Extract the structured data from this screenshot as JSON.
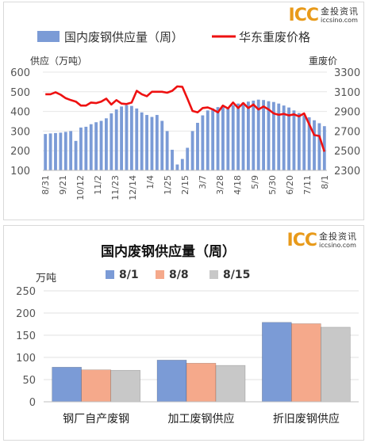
{
  "logo": {
    "mark": "ICC",
    "chinese": "金投资讯",
    "url": "iccsino.com"
  },
  "chart_data": [
    {
      "type": "bar+line",
      "legend": {
        "bar_label": "国内废钢供应量（周）",
        "line_label": "华东重废价格",
        "placement": "top"
      },
      "y_left_label": "供应（万吨）",
      "y_right_label": "重废价",
      "y_left": {
        "min": 100,
        "max": 600,
        "ticks": [
          "600",
          "500",
          "400",
          "300",
          "200",
          "100"
        ]
      },
      "y_right": {
        "min": 2300,
        "max": 3300,
        "ticks": [
          "3300",
          "3100",
          "2900",
          "2700",
          "2500",
          "2300"
        ]
      },
      "x_tick_labels": [
        "8/31",
        "9/21",
        "10/12",
        "11/2",
        "11/23",
        "12/14",
        "1/4",
        "1/25",
        "2/15",
        "3/7",
        "3/28",
        "4/18",
        "5/9",
        "5/30",
        "6/20",
        "7/11",
        "8/1"
      ],
      "supply": [
        285,
        288,
        290,
        292,
        296,
        300,
        250,
        318,
        322,
        335,
        345,
        352,
        365,
        390,
        410,
        425,
        432,
        428,
        415,
        395,
        382,
        372,
        382,
        352,
        300,
        205,
        130,
        158,
        215,
        300,
        342,
        380,
        405,
        415,
        422,
        430,
        420,
        432,
        440,
        445,
        450,
        455,
        460,
        458,
        452,
        448,
        440,
        430,
        420,
        405,
        392,
        380,
        370,
        355,
        340,
        325
      ],
      "price": [
        3075,
        3075,
        3095,
        3070,
        3035,
        3015,
        3000,
        2960,
        2960,
        2990,
        2985,
        3000,
        3030,
        2970,
        3015,
        2980,
        2975,
        2990,
        3110,
        3075,
        3055,
        3100,
        3100,
        3100,
        3090,
        3110,
        3155,
        3150,
        3030,
        2905,
        2890,
        2935,
        2940,
        2920,
        2890,
        2960,
        2930,
        2990,
        2935,
        2985,
        2935,
        2970,
        2920,
        2950,
        2920,
        2880,
        2865,
        2875,
        2860,
        2870,
        2850,
        2880,
        2770,
        2660,
        2650,
        2490
      ],
      "colors": {
        "bar": "#7b9bd6",
        "line": "#ee1111"
      }
    },
    {
      "type": "bar",
      "title": "国内废钢供应量（周）",
      "unit_label": "万吨",
      "categories": [
        "钢厂自产废钢",
        "加工废钢供应",
        "折旧废钢供应"
      ],
      "series": [
        {
          "name": "8/1",
          "values": [
            78,
            94,
            179
          ],
          "color": "#7b9bd6"
        },
        {
          "name": "8/8",
          "values": [
            72,
            87,
            176
          ],
          "color": "#f5a98b"
        },
        {
          "name": "8/15",
          "values": [
            71,
            82,
            168
          ],
          "color": "#c8c8c8"
        }
      ],
      "ylim": [
        0,
        250
      ],
      "y_ticks": [
        "250",
        "200",
        "150",
        "100",
        "50",
        "0"
      ],
      "grid": true
    }
  ]
}
